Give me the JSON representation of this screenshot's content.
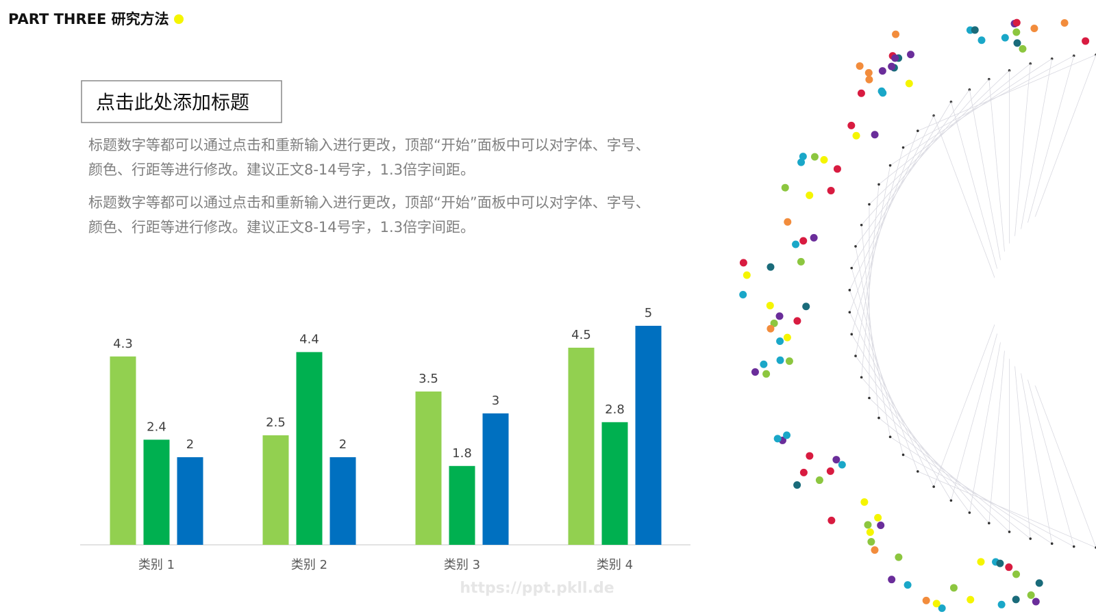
{
  "header": {
    "title": "PART THREE 研究方法"
  },
  "heading": "点击此处添加标题",
  "paragraphs": [
    [
      "标题数字等都可以通过点击和重新输入进行更改，顶部“开始”面板中可以对字体、字号、",
      "颜色、行距等进行修改。建议正文8-14号字，1.3倍字间距。"
    ],
    [
      "标题数字等都可以通过点击和重新输入进行更改，顶部“开始”面板中可以对字体、字号、",
      "颜色、行距等进行修改。建议正文8-14号字，1.3倍字间距。"
    ]
  ],
  "chart_data": {
    "type": "bar",
    "categories": [
      "类别 1",
      "类别 2",
      "类别 3",
      "类别 4"
    ],
    "series": [
      {
        "color": "#92d050",
        "values": [
          4.3,
          2.5,
          3.5,
          4.5
        ]
      },
      {
        "color": "#00b050",
        "values": [
          2.4,
          4.4,
          1.8,
          2.8
        ]
      },
      {
        "color": "#0070c0",
        "values": [
          2,
          2,
          3,
          5
        ]
      }
    ]
  },
  "watermark": "https://ppt.pkll.de"
}
